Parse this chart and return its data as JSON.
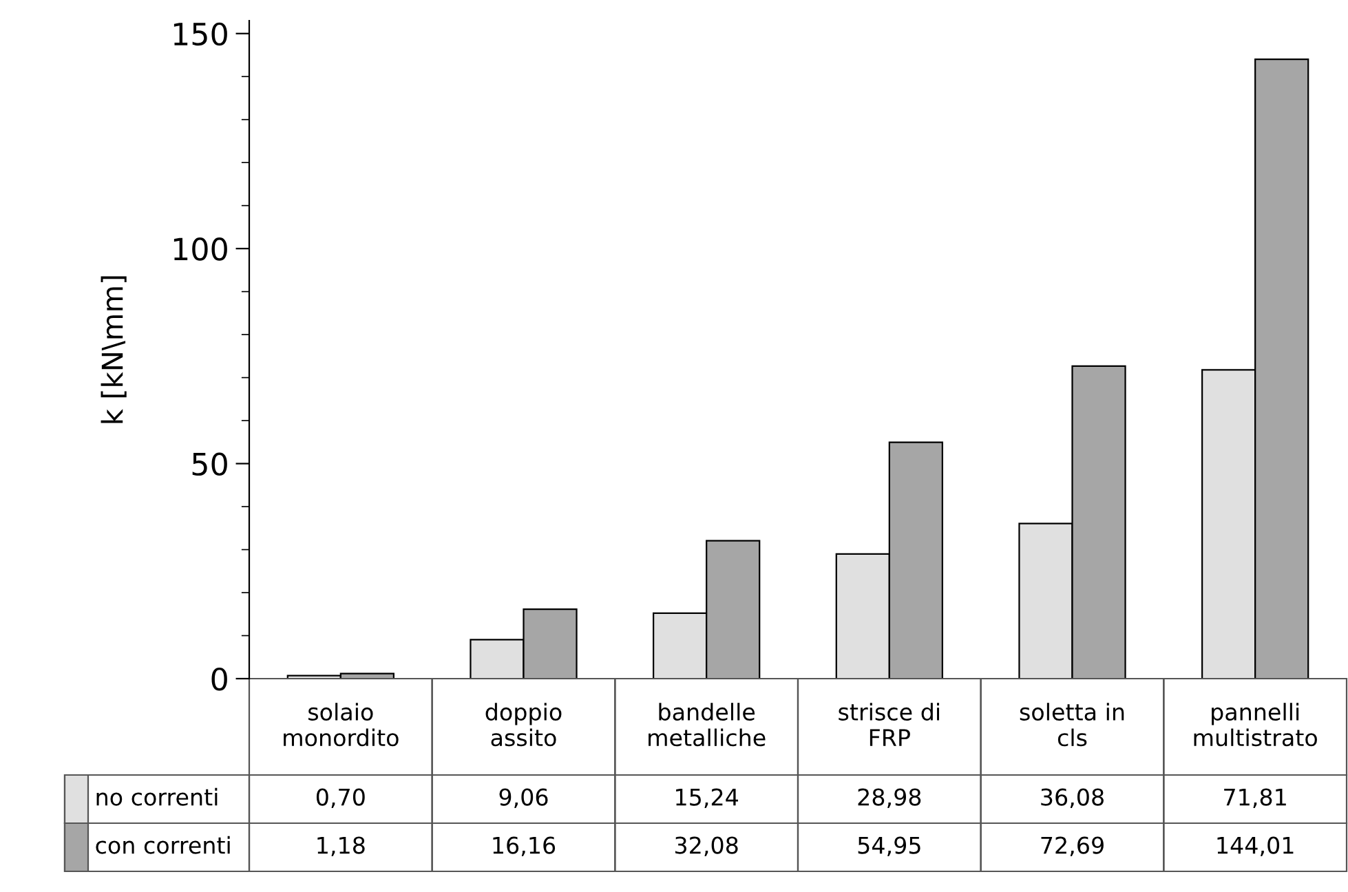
{
  "chart_data": {
    "type": "bar",
    "ylabel": "k [kN\\mm]",
    "categories": [
      "solaio monordito",
      "doppio assito",
      "bandelle metalliche",
      "strisce di FRP",
      "soletta in cls",
      "pannelli multistrato"
    ],
    "series": [
      {
        "name": "no correnti",
        "color": "#e0e0e0",
        "values": [
          0.7,
          9.06,
          15.24,
          28.98,
          36.08,
          71.81
        ],
        "value_labels": [
          "0,70",
          "9,06",
          "15,24",
          "28,98",
          "36,08",
          "71,81"
        ]
      },
      {
        "name": "con correnti",
        "color": "#a6a6a6",
        "values": [
          1.18,
          16.16,
          32.08,
          54.95,
          72.69,
          144.01
        ],
        "value_labels": [
          "1,18",
          "16,16",
          "32,08",
          "54,95",
          "72,69",
          "144,01"
        ]
      }
    ],
    "ylim": [
      0,
      153
    ],
    "yticks": [
      0,
      {
        "value": 10,
        "label": null
      },
      {
        "value": 20,
        "label": null
      },
      {
        "value": 30,
        "label": null
      },
      {
        "value": 40,
        "label": null
      },
      50,
      {
        "value": 60,
        "label": null
      },
      {
        "value": 70,
        "label": null
      },
      {
        "value": 80,
        "label": null
      },
      {
        "value": 90,
        "label": null
      },
      100,
      {
        "value": 110,
        "label": null
      },
      {
        "value": 120,
        "label": null
      },
      {
        "value": 130,
        "label": null
      },
      {
        "value": 140,
        "label": null
      },
      150
    ],
    "grid": false,
    "legend": "bottom left"
  }
}
